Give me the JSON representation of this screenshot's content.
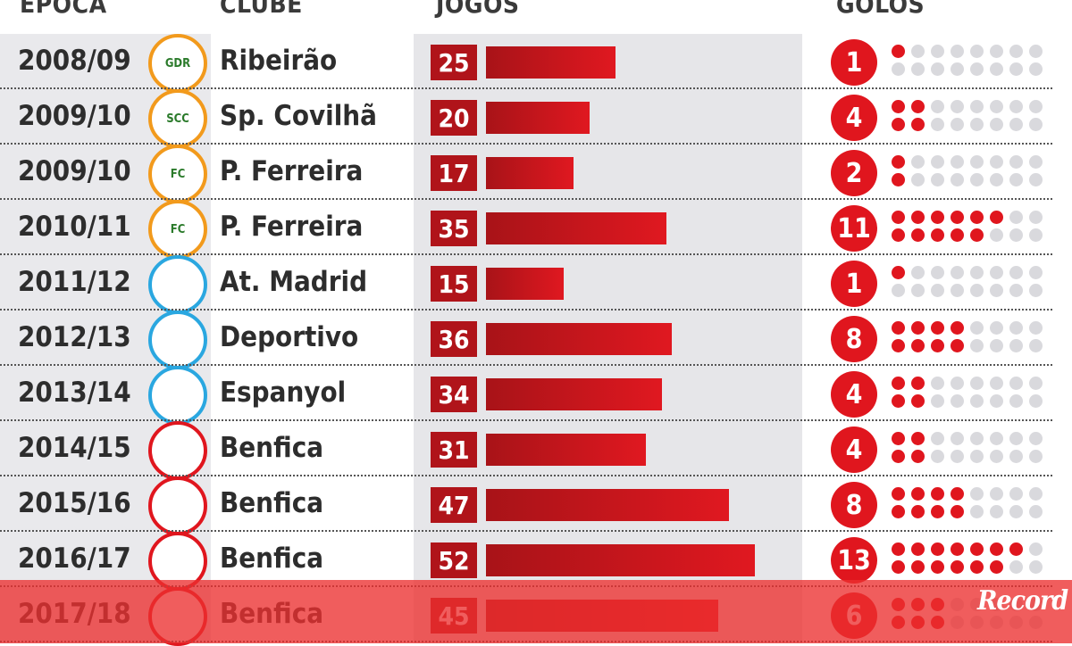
{
  "headers": {
    "epoca": "ÉPOCA",
    "clube": "CLUBE",
    "jogos": "JOGOS",
    "golos": "GOLOS"
  },
  "colors": {
    "accent": "#e0161e",
    "jogos_box": "#b0141a",
    "dot_empty": "#d9d9dd",
    "band": "#e6e6e9"
  },
  "logo": "Record",
  "chart_data": {
    "type": "bar",
    "title": "",
    "xlabel": "JOGOS",
    "ylabel": "",
    "xlim": [
      0,
      55
    ],
    "rows": [
      {
        "season": "2008/09",
        "club": "Ribeirão",
        "jogos": 25,
        "golos": 1,
        "crest_color": "#f29a1c",
        "crest_icon": "gdr-crest-icon",
        "crest_label": "GDR"
      },
      {
        "season": "2009/10",
        "club": "Sp. Covilhã",
        "jogos": 20,
        "golos": 4,
        "crest_color": "#f29a1c",
        "crest_icon": "scc-crest-icon",
        "crest_label": "SCC"
      },
      {
        "season": "2009/10",
        "club": "P. Ferreira",
        "jogos": 17,
        "golos": 2,
        "crest_color": "#f29a1c",
        "crest_icon": "fcpf-crest-icon",
        "crest_label": "FC"
      },
      {
        "season": "2010/11",
        "club": "P. Ferreira",
        "jogos": 35,
        "golos": 11,
        "crest_color": "#f29a1c",
        "crest_icon": "fcpf-crest-icon",
        "crest_label": "FC"
      },
      {
        "season": "2011/12",
        "club": "At. Madrid",
        "jogos": 15,
        "golos": 1,
        "crest_color": "#2aa7e0",
        "crest_icon": "atm-crest-icon",
        "crest_label": ""
      },
      {
        "season": "2012/13",
        "club": "Deportivo",
        "jogos": 36,
        "golos": 8,
        "crest_color": "#2aa7e0",
        "crest_icon": "depor-crest-icon",
        "crest_label": ""
      },
      {
        "season": "2013/14",
        "club": "Espanyol",
        "jogos": 34,
        "golos": 4,
        "crest_color": "#2aa7e0",
        "crest_icon": "espanyol-crest-icon",
        "crest_label": ""
      },
      {
        "season": "2014/15",
        "club": "Benfica",
        "jogos": 31,
        "golos": 4,
        "crest_color": "#e0161e",
        "crest_icon": "benfica-crest-icon",
        "crest_label": ""
      },
      {
        "season": "2015/16",
        "club": "Benfica",
        "jogos": 47,
        "golos": 8,
        "crest_color": "#e0161e",
        "crest_icon": "benfica-crest-icon",
        "crest_label": ""
      },
      {
        "season": "2016/17",
        "club": "Benfica",
        "jogos": 52,
        "golos": 13,
        "crest_color": "#e0161e",
        "crest_icon": "benfica-crest-icon",
        "crest_label": ""
      },
      {
        "season": "2017/18",
        "club": "Benfica",
        "jogos": 45,
        "golos": 6,
        "crest_color": "#e0161e",
        "crest_icon": "benfica-crest-icon",
        "crest_label": ""
      }
    ]
  }
}
